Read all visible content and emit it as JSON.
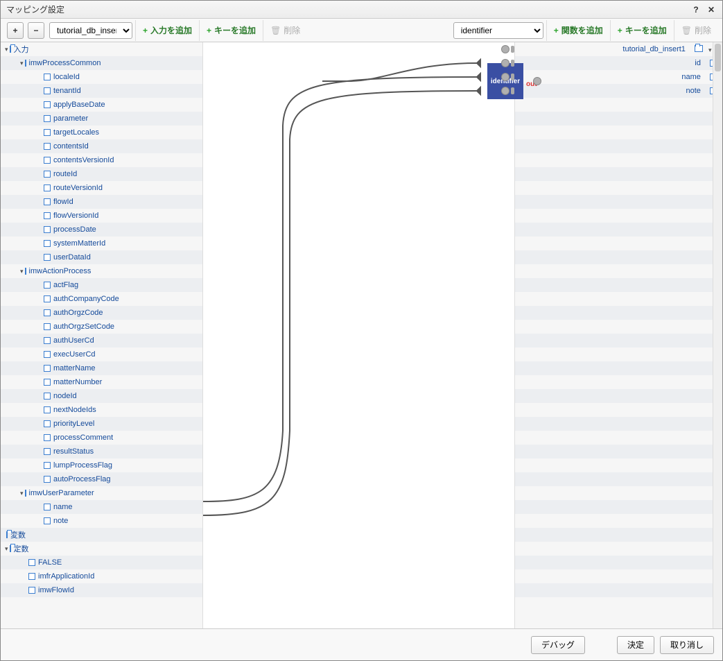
{
  "title": "マッピング設定",
  "toolbar": {
    "expand": "+",
    "collapse": "−",
    "left_select": "tutorial_db_insert",
    "add_input": "入力を追加",
    "add_key_left": "キーを追加",
    "delete_left": "削除",
    "center_select": "identifier",
    "add_func": "関数を追加",
    "add_key_right": "キーを追加",
    "delete_right": "削除"
  },
  "func_node": {
    "label": "identifier",
    "out_label": "out"
  },
  "left_tree": [
    {
      "indent": 0,
      "toggle": "▾",
      "icon": "folder",
      "name": "入力",
      "type": "<object>",
      "port": true
    },
    {
      "indent": 1,
      "toggle": "▾",
      "icon": "box",
      "name": "imwProcessCommon",
      "type": "<object>",
      "port": true
    },
    {
      "indent": 2,
      "toggle": "",
      "icon": "box",
      "name": "localeId",
      "type": "<string>",
      "port": true
    },
    {
      "indent": 2,
      "toggle": "",
      "icon": "box",
      "name": "tenantId",
      "type": "<string>",
      "port": true
    },
    {
      "indent": 2,
      "toggle": "",
      "icon": "box",
      "name": "applyBaseDate",
      "type": "<string>",
      "port": true
    },
    {
      "indent": 2,
      "toggle": "",
      "icon": "box",
      "name": "parameter",
      "type": "<string>",
      "port": true
    },
    {
      "indent": 2,
      "toggle": "",
      "icon": "box",
      "name": "targetLocales",
      "type": "<string[]>",
      "port": true
    },
    {
      "indent": 2,
      "toggle": "",
      "icon": "box",
      "name": "contentsId",
      "type": "<string>",
      "port": true
    },
    {
      "indent": 2,
      "toggle": "",
      "icon": "box",
      "name": "contentsVersionId",
      "type": "<string>",
      "port": true
    },
    {
      "indent": 2,
      "toggle": "",
      "icon": "box",
      "name": "routeId",
      "type": "<string>",
      "port": true
    },
    {
      "indent": 2,
      "toggle": "",
      "icon": "box",
      "name": "routeVersionId",
      "type": "<string>",
      "port": true
    },
    {
      "indent": 2,
      "toggle": "",
      "icon": "box",
      "name": "flowId",
      "type": "<string>",
      "port": true
    },
    {
      "indent": 2,
      "toggle": "",
      "icon": "box",
      "name": "flowVersionId",
      "type": "<string>",
      "port": true
    },
    {
      "indent": 2,
      "toggle": "",
      "icon": "box",
      "name": "processDate",
      "type": "<string>",
      "port": true
    },
    {
      "indent": 2,
      "toggle": "",
      "icon": "box",
      "name": "systemMatterId",
      "type": "<string>",
      "port": true
    },
    {
      "indent": 2,
      "toggle": "",
      "icon": "box",
      "name": "userDataId",
      "type": "<string>",
      "port": true
    },
    {
      "indent": 1,
      "toggle": "▾",
      "icon": "box",
      "name": "imwActionProcess",
      "type": "<object>",
      "port": true
    },
    {
      "indent": 2,
      "toggle": "",
      "icon": "box",
      "name": "actFlag",
      "type": "<string>",
      "port": true
    },
    {
      "indent": 2,
      "toggle": "",
      "icon": "box",
      "name": "authCompanyCode",
      "type": "<string>",
      "port": true
    },
    {
      "indent": 2,
      "toggle": "",
      "icon": "box",
      "name": "authOrgzCode",
      "type": "<string>",
      "port": true
    },
    {
      "indent": 2,
      "toggle": "",
      "icon": "box",
      "name": "authOrgzSetCode",
      "type": "<string>",
      "port": true
    },
    {
      "indent": 2,
      "toggle": "",
      "icon": "box",
      "name": "authUserCd",
      "type": "<string>",
      "port": true
    },
    {
      "indent": 2,
      "toggle": "",
      "icon": "box",
      "name": "execUserCd",
      "type": "<string>",
      "port": true
    },
    {
      "indent": 2,
      "toggle": "",
      "icon": "box",
      "name": "matterName",
      "type": "<string>",
      "port": true
    },
    {
      "indent": 2,
      "toggle": "",
      "icon": "box",
      "name": "matterNumber",
      "type": "<string>",
      "port": true
    },
    {
      "indent": 2,
      "toggle": "",
      "icon": "box",
      "name": "nodeId",
      "type": "<string>",
      "port": true
    },
    {
      "indent": 2,
      "toggle": "",
      "icon": "box",
      "name": "nextNodeIds",
      "type": "<string[]>",
      "port": true
    },
    {
      "indent": 2,
      "toggle": "",
      "icon": "box",
      "name": "priorityLevel",
      "type": "<string>",
      "port": true
    },
    {
      "indent": 2,
      "toggle": "",
      "icon": "box",
      "name": "processComment",
      "type": "<string>",
      "port": true
    },
    {
      "indent": 2,
      "toggle": "",
      "icon": "box",
      "name": "resultStatus",
      "type": "<string>",
      "port": true
    },
    {
      "indent": 2,
      "toggle": "",
      "icon": "box",
      "name": "lumpProcessFlag",
      "type": "<string>",
      "port": true
    },
    {
      "indent": 2,
      "toggle": "",
      "icon": "box",
      "name": "autoProcessFlag",
      "type": "<string>",
      "port": true
    },
    {
      "indent": 1,
      "toggle": "▾",
      "icon": "box",
      "name": "imwUserParameter",
      "type": "<object>",
      "port": true
    },
    {
      "indent": 2,
      "toggle": "",
      "icon": "box",
      "name": "name",
      "type": "<string>",
      "port": true
    },
    {
      "indent": 2,
      "toggle": "",
      "icon": "box",
      "name": "note",
      "type": "<string>",
      "port": true
    },
    {
      "indent": 0,
      "toggle": "",
      "icon": "folder",
      "name": "変数",
      "type": "<object>",
      "port": false
    },
    {
      "indent": 0,
      "toggle": "▾",
      "icon": "folder",
      "name": "定数",
      "type": "<object>",
      "port": true
    },
    {
      "indent": 1,
      "toggle": "",
      "icon": "box",
      "name": "FALSE",
      "type": "<string>",
      "port": true
    },
    {
      "indent": 1,
      "toggle": "",
      "icon": "box",
      "name": "imfrApplicationId",
      "type": "<string>",
      "port": true
    },
    {
      "indent": 1,
      "toggle": "",
      "icon": "box",
      "name": "imwFlowId",
      "type": "<string>",
      "port": true
    }
  ],
  "right_tree": [
    {
      "name": "tutorial_db_insert1",
      "type": "<object>",
      "icon": "folder",
      "toggle": "▾",
      "port": true
    },
    {
      "name": "id",
      "type": "<string>",
      "icon": "box",
      "port": true
    },
    {
      "name": "name",
      "type": "<string>",
      "icon": "box",
      "port": true
    },
    {
      "name": "note",
      "type": "<string>",
      "icon": "box",
      "port": true
    }
  ],
  "wires": {
    "stroke": "#555555",
    "stroke_width": 2,
    "paths": [
      "M 172,56 L 210,56 C 260,56 300,30 395,30",
      "M 0,662 C 80,662 110,650 115,560 L 115,120 C 118,60 160,50 395,50",
      "M 0,682 C 100,682 120,660 125,560 L 125,140 C 128,80 170,70 395,70",
      "M 395,30 L 400,25 L 400,35 Z",
      "M 395,50 L 400,45 L 400,55 Z",
      "M 395,70 L 400,65 L 400,75 Z"
    ]
  },
  "footer": {
    "debug": "デバッグ",
    "ok": "決定",
    "cancel": "取り消し"
  },
  "colors": {
    "node_bg": "#3a4fa3",
    "link": "#144a9a",
    "type": "#888888"
  }
}
